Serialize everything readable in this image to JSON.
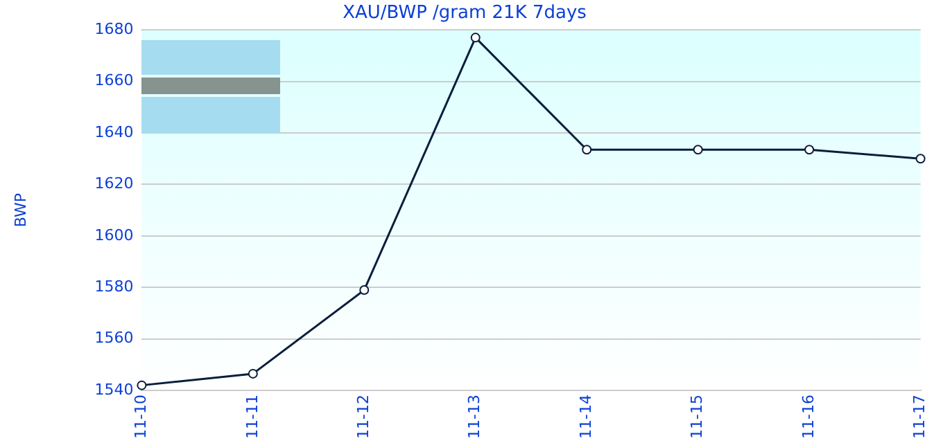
{
  "chart_data": {
    "type": "line",
    "title": "XAU/BWP /gram 21K 7days",
    "ylabel": "BWP",
    "categories": [
      "11-10",
      "11-11",
      "11-12",
      "11-13",
      "11-14",
      "11-15",
      "11-16",
      "11-17"
    ],
    "series": [
      {
        "color": "#0a1e3c",
        "values": [
          1542,
          1546.5,
          1579,
          1677,
          1633.5,
          1633.5,
          1633.5,
          1630
        ]
      }
    ],
    "ylim": [
      1540,
      1680
    ],
    "yticks": [
      1540,
      1560,
      1580,
      1600,
      1620,
      1640,
      1660,
      1680
    ],
    "grid": "y",
    "legend": false,
    "marker": "circle",
    "line_style": "solid"
  }
}
